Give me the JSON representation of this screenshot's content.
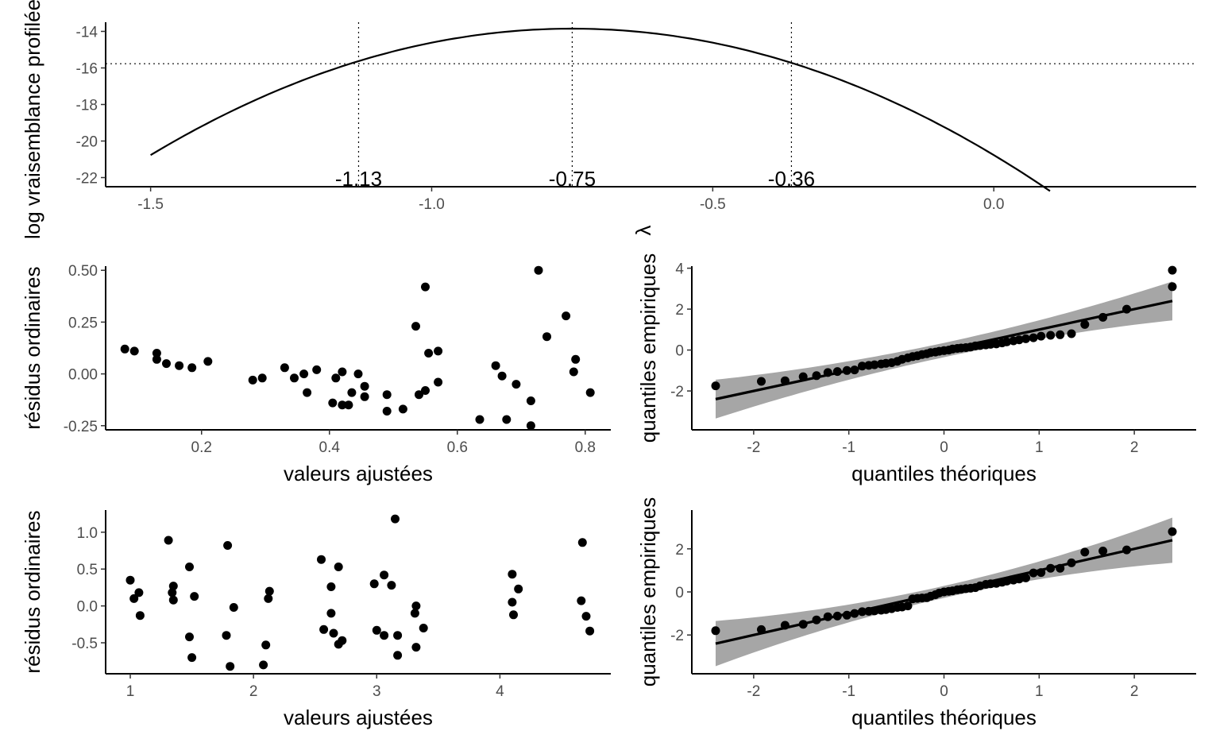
{
  "chart_data": [
    {
      "id": "profile",
      "type": "line",
      "title": "",
      "xlabel": "λ",
      "ylabel": "log vraisemblance profilée",
      "xlim": [
        -1.58,
        0.36
      ],
      "ylim": [
        -22.5,
        -13.5
      ],
      "x_ticks": [
        -1.5,
        -1.0,
        -0.5,
        0.0
      ],
      "x_tick_labels": [
        "-1.5",
        "-1.0",
        "-0.5",
        "0.0"
      ],
      "y_ticks": [
        -22,
        -20,
        -18,
        -16,
        -14
      ],
      "y_tick_labels": [
        "-22",
        "-20",
        "-18",
        "-16",
        "-14"
      ],
      "curve": {
        "x_start": -1.5,
        "x_end": 0.1,
        "x_max": -0.75,
        "y_max": -13.85,
        "curvature": 12.3
      },
      "cutoff_y": -15.77,
      "vlines": [
        -1.13,
        -0.75,
        -0.36
      ],
      "vline_labels": [
        "-1.13",
        "-0.75",
        "-0.36"
      ],
      "grid": false,
      "legend": "none"
    },
    {
      "id": "resid1",
      "type": "scatter",
      "title": "",
      "xlabel": "valeurs ajustées",
      "ylabel": "résidus ordinaires",
      "xlim": [
        0.05,
        0.84
      ],
      "ylim": [
        -0.27,
        0.52
      ],
      "x_ticks": [
        0.2,
        0.4,
        0.6,
        0.8
      ],
      "x_tick_labels": [
        "0.2",
        "0.4",
        "0.6",
        "0.8"
      ],
      "y_ticks": [
        -0.25,
        0.0,
        0.25,
        0.5
      ],
      "y_tick_labels": [
        "-0.25",
        "0.00",
        "0.25",
        "0.50"
      ],
      "points": [
        [
          0.08,
          0.12
        ],
        [
          0.095,
          0.11
        ],
        [
          0.13,
          0.1
        ],
        [
          0.13,
          0.07
        ],
        [
          0.145,
          0.05
        ],
        [
          0.165,
          0.04
        ],
        [
          0.185,
          0.03
        ],
        [
          0.21,
          0.06
        ],
        [
          0.28,
          -0.03
        ],
        [
          0.295,
          -0.02
        ],
        [
          0.33,
          0.03
        ],
        [
          0.345,
          -0.02
        ],
        [
          0.36,
          0.0
        ],
        [
          0.365,
          -0.09
        ],
        [
          0.38,
          0.02
        ],
        [
          0.405,
          -0.14
        ],
        [
          0.41,
          -0.02
        ],
        [
          0.42,
          -0.15
        ],
        [
          0.42,
          0.01
        ],
        [
          0.43,
          -0.15
        ],
        [
          0.435,
          -0.09
        ],
        [
          0.445,
          0.0
        ],
        [
          0.455,
          -0.11
        ],
        [
          0.455,
          -0.06
        ],
        [
          0.49,
          -0.1
        ],
        [
          0.49,
          -0.18
        ],
        [
          0.515,
          -0.17
        ],
        [
          0.535,
          0.23
        ],
        [
          0.54,
          -0.1
        ],
        [
          0.55,
          0.42
        ],
        [
          0.55,
          -0.08
        ],
        [
          0.555,
          0.1
        ],
        [
          0.57,
          0.11
        ],
        [
          0.57,
          -0.04
        ],
        [
          0.635,
          -0.22
        ],
        [
          0.66,
          0.04
        ],
        [
          0.67,
          -0.01
        ],
        [
          0.677,
          -0.22
        ],
        [
          0.692,
          -0.05
        ],
        [
          0.715,
          -0.25
        ],
        [
          0.715,
          -0.13
        ],
        [
          0.727,
          0.5
        ],
        [
          0.74,
          0.18
        ],
        [
          0.77,
          0.28
        ],
        [
          0.782,
          0.01
        ],
        [
          0.785,
          0.07
        ],
        [
          0.808,
          -0.09
        ]
      ],
      "grid": false,
      "legend": "none"
    },
    {
      "id": "qq1",
      "type": "scatter",
      "title": "",
      "xlabel": "quantiles théoriques",
      "ylabel": "quantiles empiriques",
      "xlim": [
        -2.65,
        2.65
      ],
      "ylim": [
        -3.9,
        4.1
      ],
      "x_ticks": [
        -2,
        -1,
        0,
        1,
        2
      ],
      "x_tick_labels": [
        "-2",
        "-1",
        "0",
        "1",
        "2"
      ],
      "y_ticks": [
        -2,
        0,
        2,
        4
      ],
      "y_tick_labels": [
        "-2",
        "0",
        "2",
        "4"
      ],
      "points": [
        [
          -2.4,
          -1.75
        ],
        [
          -1.92,
          -1.53
        ],
        [
          -1.67,
          -1.5
        ],
        [
          -1.48,
          -1.3
        ],
        [
          -1.34,
          -1.25
        ],
        [
          -1.22,
          -1.1
        ],
        [
          -1.12,
          -1.05
        ],
        [
          -1.02,
          -1.0
        ],
        [
          -0.94,
          -0.97
        ],
        [
          -0.86,
          -0.78
        ],
        [
          -0.79,
          -0.75
        ],
        [
          -0.73,
          -0.72
        ],
        [
          -0.66,
          -0.68
        ],
        [
          -0.61,
          -0.65
        ],
        [
          -0.55,
          -0.62
        ],
        [
          -0.49,
          -0.55
        ],
        [
          -0.44,
          -0.45
        ],
        [
          -0.38,
          -0.38
        ],
        [
          -0.33,
          -0.32
        ],
        [
          -0.28,
          -0.28
        ],
        [
          -0.23,
          -0.22
        ],
        [
          -0.18,
          -0.18
        ],
        [
          -0.14,
          -0.12
        ],
        [
          -0.09,
          -0.1
        ],
        [
          -0.05,
          -0.06
        ],
        [
          0.0,
          -0.03
        ],
        [
          0.05,
          0.0
        ],
        [
          0.09,
          0.05
        ],
        [
          0.14,
          0.08
        ],
        [
          0.18,
          0.1
        ],
        [
          0.23,
          0.12
        ],
        [
          0.28,
          0.15
        ],
        [
          0.33,
          0.2
        ],
        [
          0.38,
          0.22
        ],
        [
          0.44,
          0.25
        ],
        [
          0.49,
          0.28
        ],
        [
          0.55,
          0.3
        ],
        [
          0.61,
          0.35
        ],
        [
          0.66,
          0.4
        ],
        [
          0.73,
          0.45
        ],
        [
          0.79,
          0.5
        ],
        [
          0.86,
          0.55
        ],
        [
          0.94,
          0.6
        ],
        [
          1.02,
          0.68
        ],
        [
          1.12,
          0.72
        ],
        [
          1.22,
          0.75
        ],
        [
          1.34,
          0.8
        ],
        [
          1.48,
          1.25
        ],
        [
          1.67,
          1.6
        ],
        [
          1.92,
          2.0
        ],
        [
          2.4,
          3.1
        ],
        [
          2.4,
          3.9
        ]
      ],
      "qq_line": {
        "slope": 1.0,
        "intercept": 0.0
      },
      "band_halfwidth_center": 0.35,
      "band_halfwidth_edge": 0.95,
      "grid": false,
      "legend": "none"
    },
    {
      "id": "resid2",
      "type": "scatter",
      "title": "",
      "xlabel": "valeurs ajustées",
      "ylabel": "résidus ordinaires",
      "xlim": [
        0.8,
        4.9
      ],
      "ylim": [
        -0.92,
        1.3
      ],
      "x_ticks": [
        1,
        2,
        3,
        4
      ],
      "x_tick_labels": [
        "1",
        "2",
        "3",
        "4"
      ],
      "y_ticks": [
        -0.5,
        0.0,
        0.5,
        1.0
      ],
      "y_tick_labels": [
        "-0.5",
        "0.0",
        "0.5",
        "1.0"
      ],
      "points": [
        [
          1.0,
          0.35
        ],
        [
          1.03,
          0.1
        ],
        [
          1.07,
          0.18
        ],
        [
          1.08,
          -0.13
        ],
        [
          1.31,
          0.89
        ],
        [
          1.34,
          0.18
        ],
        [
          1.35,
          0.27
        ],
        [
          1.35,
          0.08
        ],
        [
          1.48,
          0.53
        ],
        [
          1.48,
          -0.42
        ],
        [
          1.5,
          -0.7
        ],
        [
          1.52,
          0.13
        ],
        [
          1.78,
          -0.4
        ],
        [
          1.79,
          0.82
        ],
        [
          1.81,
          -0.82
        ],
        [
          1.84,
          -0.02
        ],
        [
          2.08,
          -0.8
        ],
        [
          2.1,
          -0.53
        ],
        [
          2.12,
          0.1
        ],
        [
          2.13,
          0.2
        ],
        [
          2.55,
          0.63
        ],
        [
          2.57,
          -0.32
        ],
        [
          2.63,
          0.26
        ],
        [
          2.63,
          -0.1
        ],
        [
          2.65,
          -0.37
        ],
        [
          2.69,
          0.53
        ],
        [
          2.69,
          -0.52
        ],
        [
          2.72,
          -0.47
        ],
        [
          2.98,
          0.3
        ],
        [
          3.0,
          -0.33
        ],
        [
          3.06,
          0.42
        ],
        [
          3.06,
          -0.4
        ],
        [
          3.12,
          0.28
        ],
        [
          3.15,
          1.18
        ],
        [
          3.17,
          -0.67
        ],
        [
          3.17,
          -0.4
        ],
        [
          3.31,
          -0.1
        ],
        [
          3.32,
          0.0
        ],
        [
          3.32,
          -0.56
        ],
        [
          3.38,
          -0.3
        ],
        [
          4.1,
          0.43
        ],
        [
          4.1,
          0.05
        ],
        [
          4.11,
          -0.12
        ],
        [
          4.15,
          0.23
        ],
        [
          4.66,
          0.07
        ],
        [
          4.67,
          0.86
        ],
        [
          4.7,
          -0.14
        ],
        [
          4.73,
          -0.34
        ]
      ],
      "grid": false,
      "legend": "none"
    },
    {
      "id": "qq2",
      "type": "scatter",
      "title": "",
      "xlabel": "quantiles théoriques",
      "ylabel": "quantiles empiriques",
      "xlim": [
        -2.65,
        2.65
      ],
      "ylim": [
        -3.8,
        3.8
      ],
      "x_ticks": [
        -2,
        -1,
        0,
        1,
        2
      ],
      "x_tick_labels": [
        "-2",
        "-1",
        "0",
        "1",
        "2"
      ],
      "y_ticks": [
        -2,
        0,
        2
      ],
      "y_tick_labels": [
        "-2",
        "0",
        "2"
      ],
      "points": [
        [
          -2.4,
          -1.8
        ],
        [
          -1.92,
          -1.75
        ],
        [
          -1.67,
          -1.55
        ],
        [
          -1.48,
          -1.5
        ],
        [
          -1.34,
          -1.3
        ],
        [
          -1.22,
          -1.15
        ],
        [
          -1.12,
          -1.12
        ],
        [
          -1.02,
          -1.08
        ],
        [
          -0.94,
          -1.0
        ],
        [
          -0.86,
          -0.92
        ],
        [
          -0.79,
          -0.9
        ],
        [
          -0.73,
          -0.88
        ],
        [
          -0.66,
          -0.85
        ],
        [
          -0.61,
          -0.82
        ],
        [
          -0.55,
          -0.78
        ],
        [
          -0.49,
          -0.72
        ],
        [
          -0.44,
          -0.7
        ],
        [
          -0.38,
          -0.65
        ],
        [
          -0.33,
          -0.32
        ],
        [
          -0.28,
          -0.3
        ],
        [
          -0.23,
          -0.28
        ],
        [
          -0.18,
          -0.27
        ],
        [
          -0.14,
          -0.2
        ],
        [
          -0.09,
          -0.13
        ],
        [
          -0.05,
          -0.05
        ],
        [
          0.0,
          0.0
        ],
        [
          0.05,
          0.03
        ],
        [
          0.09,
          0.05
        ],
        [
          0.14,
          0.1
        ],
        [
          0.18,
          0.12
        ],
        [
          0.23,
          0.15
        ],
        [
          0.28,
          0.17
        ],
        [
          0.33,
          0.2
        ],
        [
          0.38,
          0.28
        ],
        [
          0.44,
          0.35
        ],
        [
          0.49,
          0.38
        ],
        [
          0.55,
          0.4
        ],
        [
          0.61,
          0.45
        ],
        [
          0.66,
          0.5
        ],
        [
          0.73,
          0.55
        ],
        [
          0.79,
          0.6
        ],
        [
          0.86,
          0.65
        ],
        [
          0.94,
          0.88
        ],
        [
          1.02,
          0.9
        ],
        [
          1.12,
          1.1
        ],
        [
          1.22,
          1.1
        ],
        [
          1.34,
          1.35
        ],
        [
          1.48,
          1.85
        ],
        [
          1.67,
          1.9
        ],
        [
          1.92,
          1.95
        ],
        [
          2.4,
          2.8
        ]
      ],
      "qq_line": {
        "slope": 1.0,
        "intercept": 0.0
      },
      "band_halfwidth_center": 0.28,
      "band_halfwidth_edge": 1.05,
      "grid": false,
      "legend": "none"
    }
  ]
}
